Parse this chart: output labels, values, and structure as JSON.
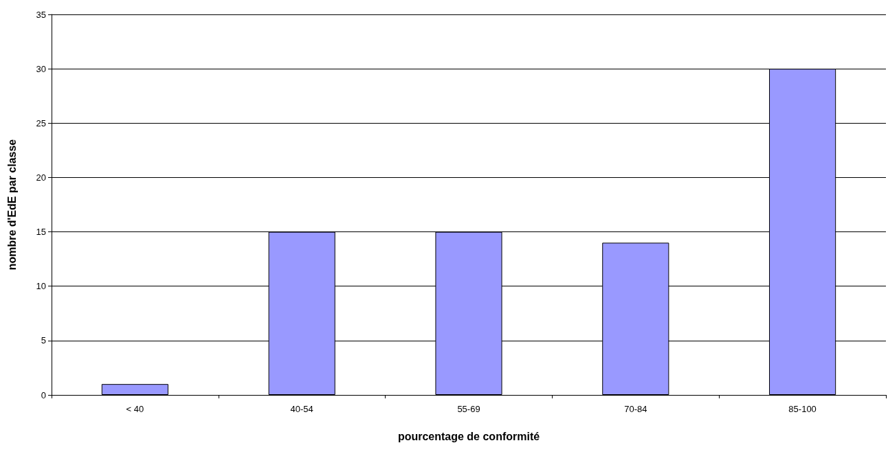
{
  "chart_data": {
    "type": "bar",
    "xlabel": "pourcentage de conformité",
    "ylabel": "nombre d'EdE par classe",
    "categories": [
      "< 40",
      "40-54",
      "55-69",
      "70-84",
      "85-100"
    ],
    "values": [
      1,
      15,
      15,
      14,
      30
    ],
    "color": "#9999ff",
    "ylim": [
      0,
      35
    ],
    "yticks": [
      0,
      5,
      10,
      15,
      20,
      25,
      30,
      35
    ],
    "grid": "y"
  }
}
